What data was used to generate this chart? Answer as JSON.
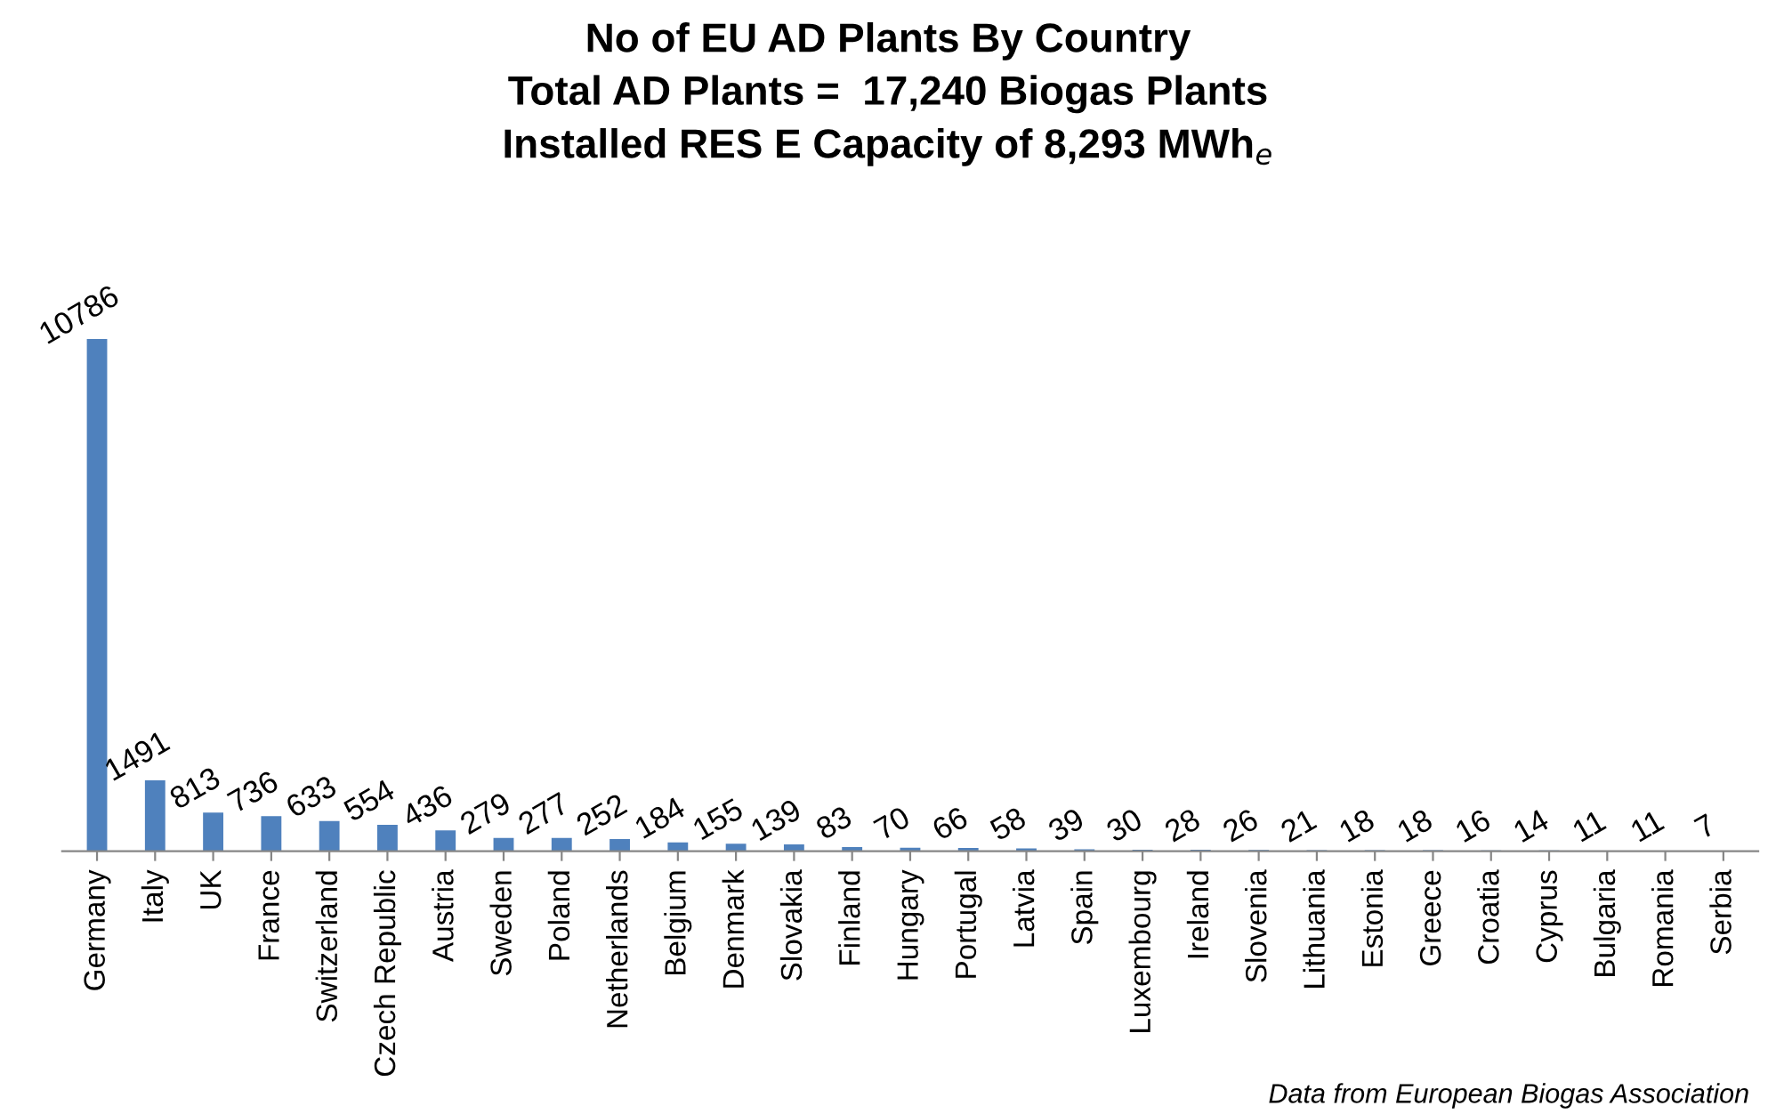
{
  "chart_data": {
    "type": "bar",
    "title": "No of EU AD Plants By Country\nTotal AD Plants =  17,240 Biogas Plants\nInstalled RES E Capacity of 8,293 MWh$_{e}$",
    "categories": [
      "Germany",
      "Italy",
      "UK",
      "France",
      "Switzerland",
      "Czech Republic",
      "Austria",
      "Sweden",
      "Poland",
      "Netherlands",
      "Belgium",
      "Denmark",
      "Slovakia",
      "Finland",
      "Hungary",
      "Portugal",
      "Latvia",
      "Spain",
      "Luxembourg",
      "Ireland",
      "Slovenia",
      "Lithuania",
      "Estonia",
      "Greece",
      "Croatia",
      "Cyprus",
      "Bulgaria",
      "Romania",
      "Serbia"
    ],
    "values": [
      10786,
      1491,
      813,
      736,
      633,
      554,
      436,
      279,
      277,
      252,
      184,
      155,
      139,
      83,
      70,
      66,
      58,
      39,
      30,
      28,
      26,
      21,
      18,
      18,
      16,
      14,
      11,
      11,
      7
    ],
    "color": "#4f81bd",
    "data_labels": true,
    "grid": false,
    "legend": false,
    "annotations": [
      "Data from European Biogas Association"
    ]
  }
}
